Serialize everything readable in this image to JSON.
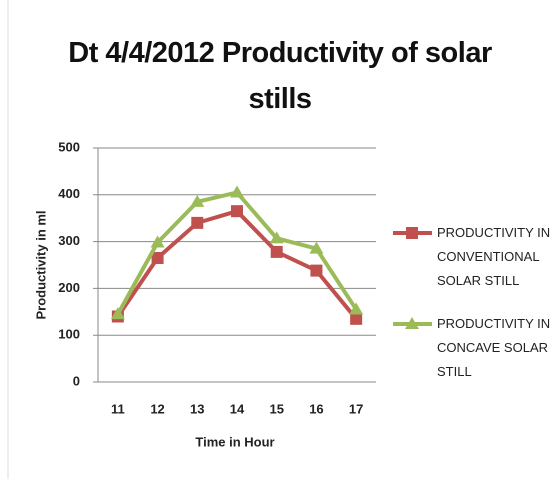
{
  "chart_data": {
    "type": "line",
    "title": "Dt 4/4/2012 Productivity of solar stills",
    "x_label": "Time in Hour",
    "y_label": "Productivity in  ml",
    "categories": [
      "11",
      "12",
      "13",
      "14",
      "15",
      "16",
      "17"
    ],
    "series": [
      {
        "name": "PRODUCTIVITY  IN CONVENTIONAL SOLAR STILL",
        "color": "#c0504d",
        "marker": "square",
        "values": [
          140,
          265,
          340,
          365,
          278,
          238,
          135
        ]
      },
      {
        "name": "PRODUCTIVITY  IN CONCAVE SOLAR STILL",
        "color": "#9bbb59",
        "marker": "triangle",
        "values": [
          145,
          298,
          385,
          405,
          307,
          285,
          155
        ]
      }
    ],
    "ylim": [
      0,
      500
    ],
    "yticks": [
      0,
      100,
      200,
      300,
      400,
      500
    ],
    "grid": true,
    "legend": "right"
  }
}
